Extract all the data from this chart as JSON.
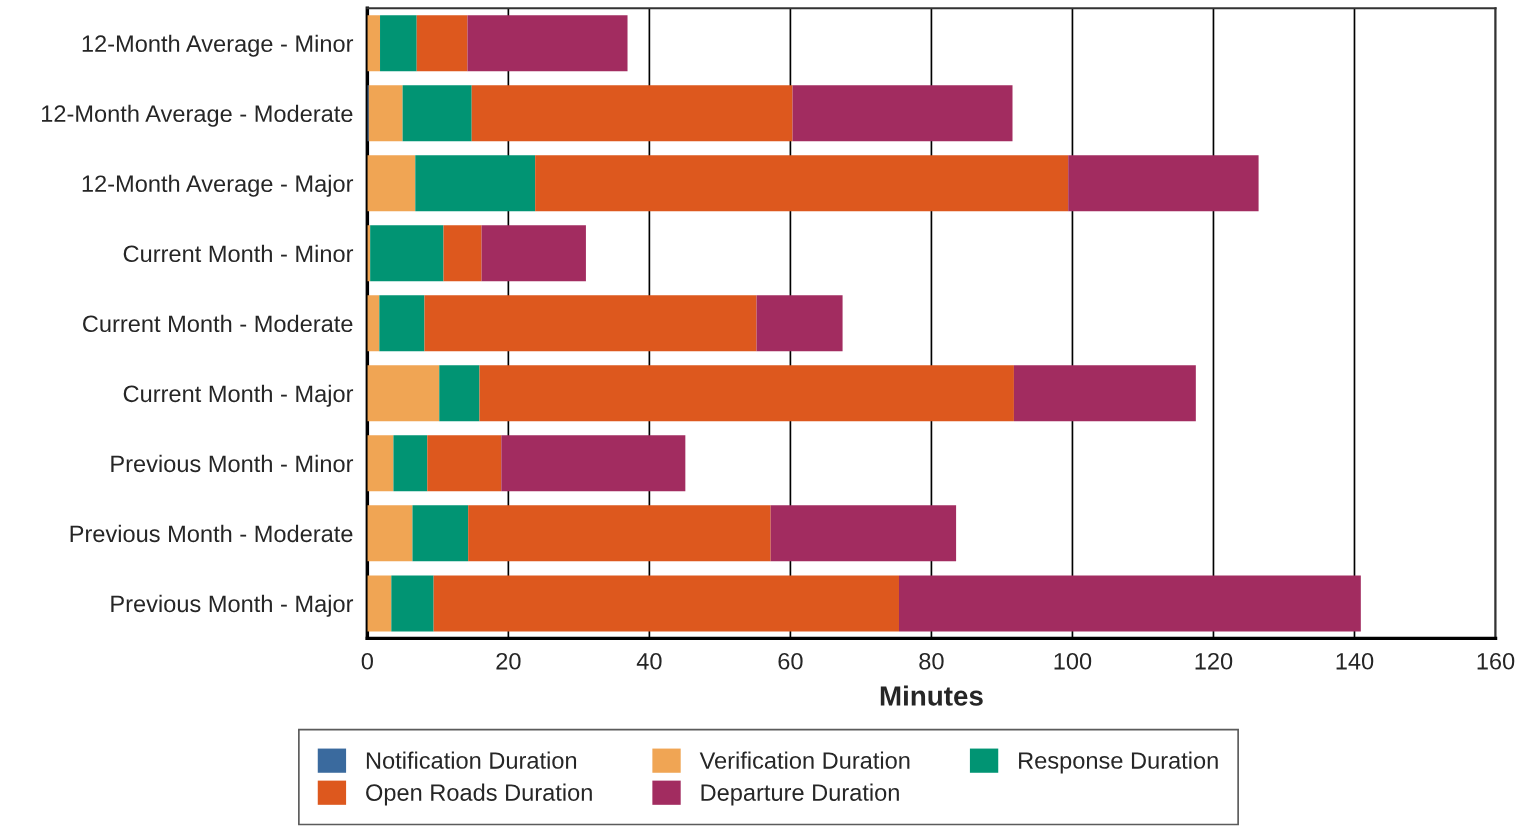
{
  "chart_data": {
    "type": "bar",
    "orientation": "horizontal",
    "stacked": true,
    "xlabel": "Minutes",
    "categories": [
      "12-Month Average - Minor",
      "12-Month Average - Moderate",
      "12-Month Average - Major",
      "Current Month - Minor",
      "Current Month - Moderate",
      "Current Month - Major",
      "Previous Month - Minor",
      "Previous Month - Moderate",
      "Previous Month - Major"
    ],
    "series": [
      {
        "name": "Notification Duration",
        "color": "#3a6a9e",
        "values": [
          0,
          0.2,
          0,
          0,
          0,
          0,
          0,
          0,
          0
        ]
      },
      {
        "name": "Verification Duration",
        "color": "#f0a554",
        "values": [
          1.8,
          4.8,
          6.8,
          0.4,
          1.7,
          10.2,
          3.7,
          6.4,
          3.4
        ]
      },
      {
        "name": "Response Duration",
        "color": "#019473",
        "values": [
          5.2,
          9.8,
          17.0,
          10.4,
          6.4,
          5.7,
          4.8,
          7.9,
          6.0
        ]
      },
      {
        "name": "Open Roads Duration",
        "color": "#dd581e",
        "values": [
          7.2,
          45.5,
          75.6,
          5.4,
          47.1,
          75.8,
          10.5,
          42.9,
          66.0
        ]
      },
      {
        "name": "Departure Duration",
        "color": "#a22c60",
        "values": [
          22.7,
          31.2,
          27.0,
          14.8,
          12.2,
          25.8,
          26.1,
          26.3,
          65.5
        ]
      }
    ],
    "xlim": [
      0,
      160
    ],
    "xticks": [
      0,
      20,
      40,
      60,
      80,
      100,
      120,
      140,
      160
    ],
    "grid": "x",
    "legend": "bottom"
  }
}
